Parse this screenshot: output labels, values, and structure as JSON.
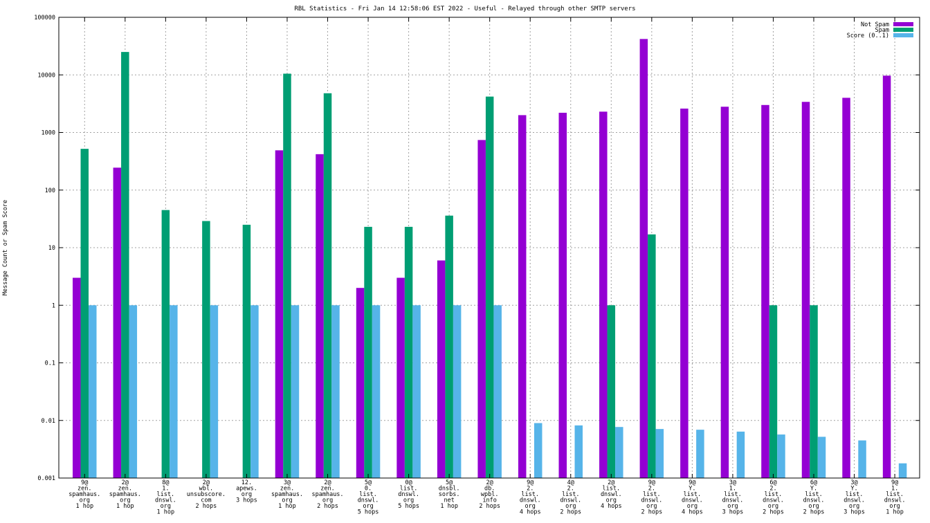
{
  "chart_data": {
    "type": "bar",
    "title": "RBL Statistics - Fri Jan 14 12:58:06 EST 2022 - Useful - Relayed through other SMTP servers",
    "xlabel": "",
    "ylabel": "Message Count or Spam Score",
    "yscale": "log",
    "ylim": [
      0.001,
      100000
    ],
    "yticks": [
      0.001,
      0.01,
      0.1,
      1,
      10,
      100,
      1000,
      10000,
      100000
    ],
    "ytick_labels": [
      "0.001",
      "0.01",
      "0.1",
      "1",
      "10",
      "100",
      "1000",
      "10000",
      "100000"
    ],
    "grid": true,
    "legend_position": "top-right",
    "categories": [
      [
        "9@",
        "zen.",
        "spamhaus.",
        "org",
        "1 hop"
      ],
      [
        "2@",
        "zen.",
        "spamhaus.",
        "org",
        "1 hop"
      ],
      [
        "8@",
        "1.",
        "list.",
        "dnswl.",
        "org",
        "1 hop"
      ],
      [
        "2@",
        "wbl.",
        "unsubscore.",
        "com",
        "2 hops"
      ],
      [
        "12.",
        "apews.",
        "org",
        "3 hops"
      ],
      [
        "3@",
        "zen.",
        "spamhaus.",
        "org",
        "1 hop"
      ],
      [
        "2@",
        "zen.",
        "spamhaus.",
        "org",
        "2 hops"
      ],
      [
        "5@",
        "0.",
        "list.",
        "dnswl.",
        "org",
        "5 hops"
      ],
      [
        "0@",
        "list.",
        "dnswl.",
        "org",
        "5 hops"
      ],
      [
        "5@",
        "dnsbl.",
        "sorbs.",
        "net",
        "1 hop"
      ],
      [
        "2@",
        "db.",
        "wpbl.",
        "info",
        "2 hops"
      ],
      [
        "9@",
        "2.",
        "list.",
        "dnswl.",
        "org",
        "4 hops"
      ],
      [
        "4@",
        "2.",
        "list.",
        "dnswl.",
        "org",
        "2 hops"
      ],
      [
        "2@",
        "list.",
        "dnswl.",
        "org",
        "4 hops"
      ],
      [
        "9@",
        "2.",
        "list.",
        "dnswl.",
        "org",
        "2 hops"
      ],
      [
        "9@",
        "Y.",
        "list.",
        "dnswl.",
        "org",
        "4 hops"
      ],
      [
        "3@",
        "1.",
        "list.",
        "dnswl.",
        "org",
        "3 hops"
      ],
      [
        "6@",
        "2.",
        "list.",
        "dnswl.",
        "org",
        "2 hops"
      ],
      [
        "6@",
        "Y.",
        "list.",
        "dnswl.",
        "org",
        "2 hops"
      ],
      [
        "3@",
        "Y.",
        "list.",
        "dnswl.",
        "org",
        "3 hops"
      ],
      [
        "9@",
        "1.",
        "list.",
        "dnswl.",
        "org",
        "1 hop"
      ]
    ],
    "series": [
      {
        "name": "Not Spam",
        "color": "#9400d3",
        "values": [
          3,
          245,
          null,
          null,
          null,
          490,
          420,
          2,
          3,
          6,
          740,
          2000,
          2200,
          2300,
          42000,
          2600,
          2800,
          3000,
          3400,
          4000,
          9700
        ]
      },
      {
        "name": "Spam",
        "color": "#009e73",
        "values": [
          520,
          25000,
          45,
          29,
          25,
          10500,
          4800,
          23,
          23,
          36,
          4200,
          null,
          null,
          1,
          17,
          null,
          null,
          1,
          1,
          null,
          null
        ]
      },
      {
        "name": "Score (0..1)",
        "color": "#56b4e9",
        "values": [
          1,
          1,
          1,
          1,
          1,
          1,
          1,
          1,
          1,
          1,
          1,
          0.009,
          0.0082,
          0.0077,
          0.0071,
          0.0069,
          0.0064,
          0.0057,
          0.0052,
          0.0045,
          0.0018
        ]
      }
    ]
  }
}
